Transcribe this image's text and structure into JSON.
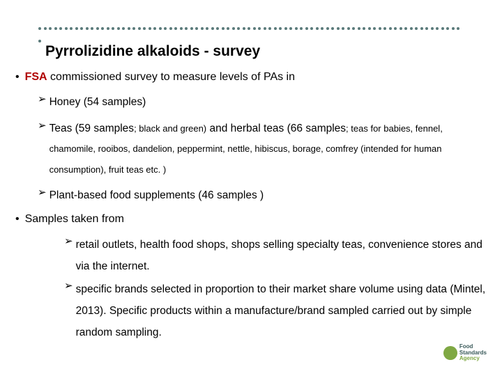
{
  "title": "Pyrrolizidine alkaloids - survey",
  "bullet1": {
    "fsa": "FSA",
    "rest": " commissioned survey to measure levels of PAs in"
  },
  "honey": "Honey (54 samples)",
  "teas": {
    "p1": "Teas (59 samples",
    "s1": "; black and green)",
    "p2": " and herbal teas (66 samples",
    "s2": "; teas for babies, fennel,  chamomile, rooibos, dandelion, peppermint, nettle, hibiscus, borage, comfrey (intended for human consumption), fruit teas etc. )"
  },
  "plant": "Plant-based food supplements (46 samples )",
  "bullet2": "Samples taken from",
  "retail": "retail outlets, health food shops, shops selling specialty teas, convenience stores and via the internet.",
  "brands": "specific brands selected in proportion to their market share volume using data (Mintel, 2013). Specific products within a manufacture/brand sampled carried out by simple random sampling.",
  "logo": {
    "l1": "Food",
    "l2": "Standards",
    "l3": "Agency"
  },
  "colors": {
    "accent": "#b00000",
    "dots": "#5a7a7a",
    "logo_green": "#7fa843",
    "logo_dark": "#3a5a5a"
  }
}
